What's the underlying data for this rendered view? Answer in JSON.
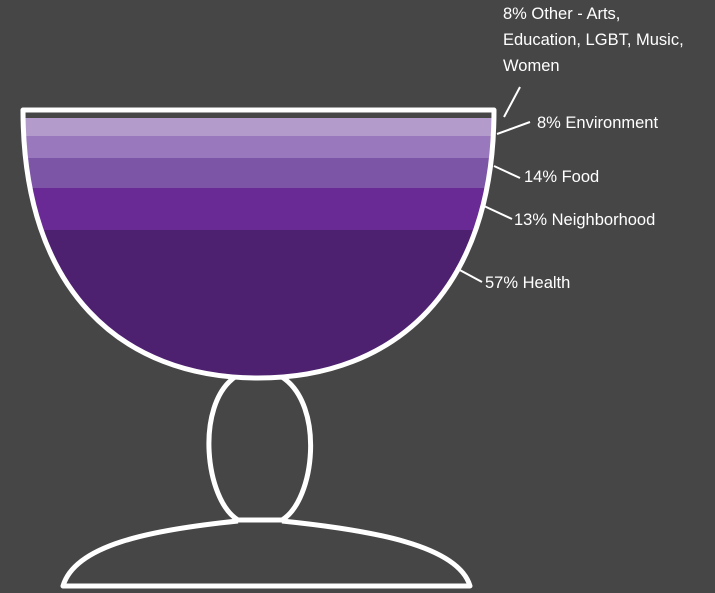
{
  "chart_data": {
    "type": "area",
    "title": "",
    "series": [
      {
        "name": "Other - Arts, Education, LGBT, Music, Women",
        "value": 8,
        "label_lines": [
          "8% Other - Arts,",
          "Education, LGBT, Music,",
          "Women"
        ],
        "color": "#b39ccb"
      },
      {
        "name": "Environment",
        "value": 8,
        "label_lines": [
          "8% Environment"
        ],
        "color": "#9a78bd"
      },
      {
        "name": "Food",
        "value": 14,
        "label_lines": [
          "14% Food"
        ],
        "color": "#7c55a6"
      },
      {
        "name": "Neighborhood",
        "value": 13,
        "label_lines": [
          "13% Neighborhood"
        ],
        "color": "#692a95"
      },
      {
        "name": "Health",
        "value": 57,
        "label_lines": [
          "57% Health"
        ],
        "color": "#4e2170"
      }
    ]
  },
  "colors": {
    "background": "#464646",
    "outline": "#ffffff"
  }
}
